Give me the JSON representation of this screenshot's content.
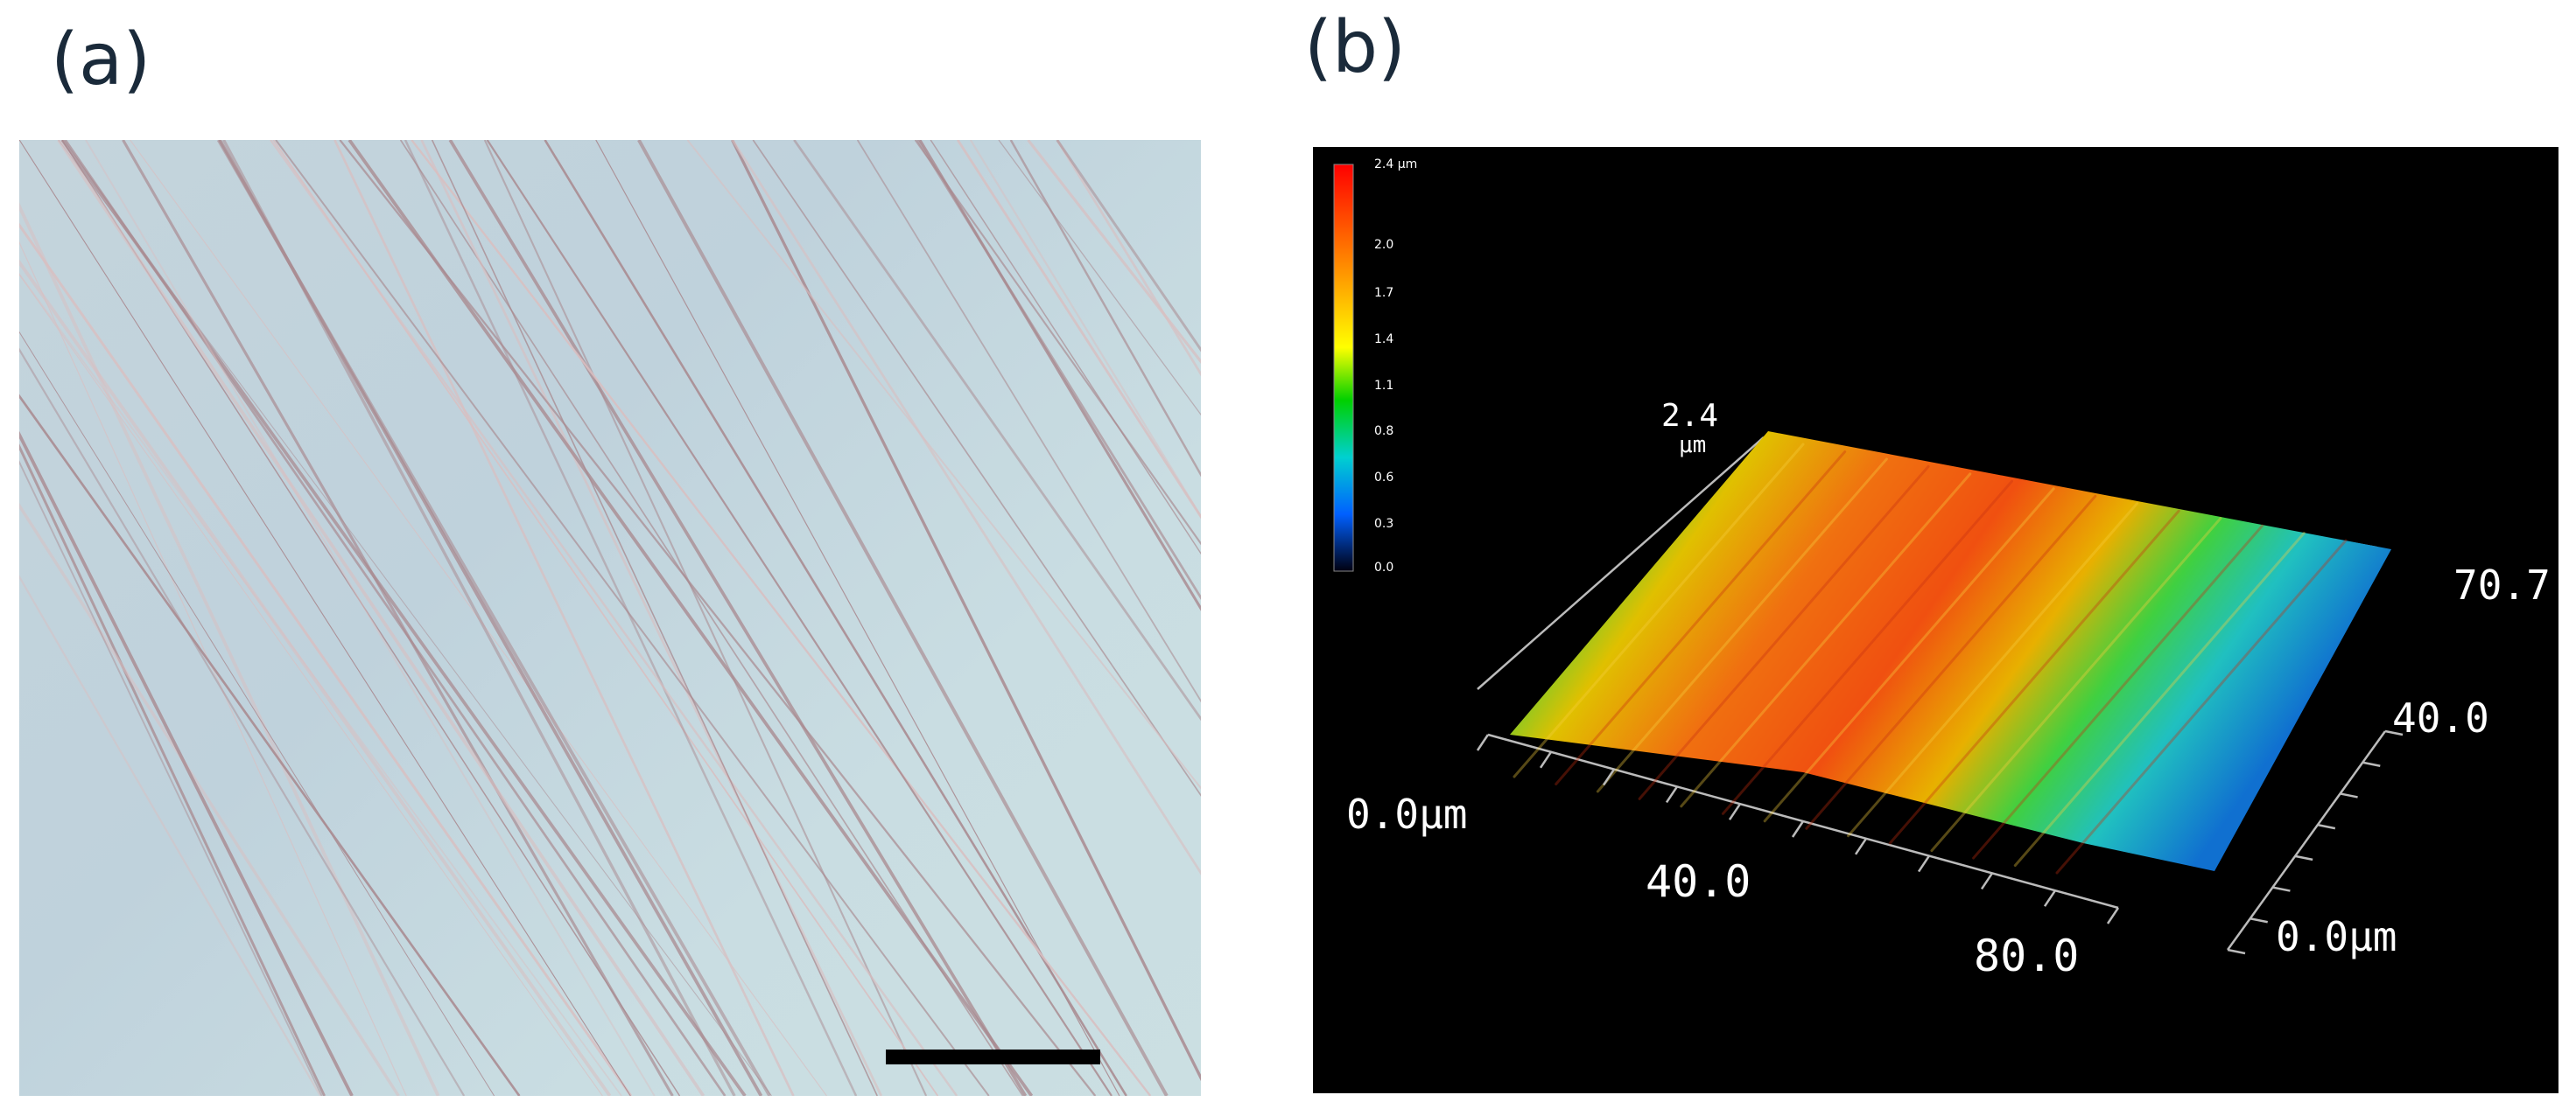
{
  "panels": {
    "a": {
      "label": "(a)"
    },
    "b": {
      "label": "(b)",
      "colorbar": {
        "max_label": "2.4 μm",
        "ticks": [
          "2.0",
          "1.7",
          "1.4",
          "1.1",
          "0.8",
          "0.6",
          "0.3",
          "0.0"
        ],
        "colors": [
          "#ff0000",
          "#ff8000",
          "#ffff00",
          "#00d000",
          "#00d0d0",
          "#0060ff",
          "#000000"
        ]
      },
      "axes": {
        "z_value": "2.4",
        "z_unit": "μm",
        "origin": "0.0μm",
        "x_mid": "40.0",
        "x_end": "80.0",
        "y_origin": "0.0μm",
        "y_mid": "40.0",
        "y_end": "70.7"
      }
    }
  }
}
